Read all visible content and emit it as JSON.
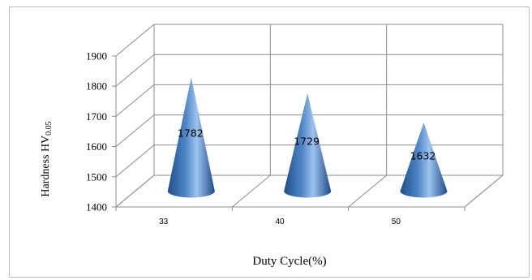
{
  "chart_data": {
    "type": "bar",
    "style": "3d-cone",
    "categories": [
      "33",
      "40",
      "50"
    ],
    "values": [
      1782,
      1729,
      1632
    ],
    "data_labels": [
      "1782",
      "1729",
      "1632"
    ],
    "yticks": [
      "1900",
      "1800",
      "1700",
      "1600",
      "1500",
      "1400"
    ],
    "ylim": [
      1400,
      1900
    ],
    "xlabel": "Duty Cycle(%)",
    "ylabel_main": "Hardness HV",
    "ylabel_sub": "0.05",
    "grid": true,
    "colors": {
      "cone_dark": "#1f4e8c",
      "cone_mid": "#4f86c6",
      "cone_light": "#9cc3ee",
      "grid": "#8c8c8c"
    }
  }
}
